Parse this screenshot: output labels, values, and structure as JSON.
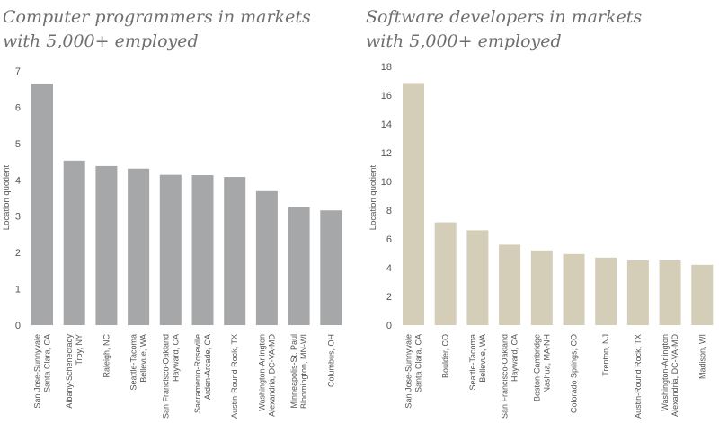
{
  "chart_data": [
    {
      "type": "bar",
      "title_lines": [
        "Computer programmers in markets",
        "with 5,000+ employed"
      ],
      "xlabel": "",
      "ylabel": "Location quotient",
      "ylim": [
        0,
        7
      ],
      "yticks": [
        0,
        1,
        2,
        3,
        4,
        5,
        6,
        7
      ],
      "grid": false,
      "bar_color": "#a5a7a9",
      "categories": [
        [
          "San Jose-Sunnyvale",
          "Santa Clara, CA"
        ],
        [
          "Albany-Schenectady",
          "Troy, NY"
        ],
        [
          "Raleigh, NC"
        ],
        [
          "Seattle-Tacoma",
          "Bellevue, WA"
        ],
        [
          "San Francisco-Oakland",
          "Hayward, CA"
        ],
        [
          "Sacramento-Roseville",
          "Arden-Arcade, CA"
        ],
        [
          "Austin-Round Rock, TX"
        ],
        [
          "Washington-Arlington",
          "Alexandria, DC-VA-MD"
        ],
        [
          "Minneapolis-St. Paul",
          "Bloomington, MN-WI"
        ],
        [
          "Columbus, OH"
        ]
      ],
      "values": [
        6.65,
        4.53,
        4.38,
        4.31,
        4.14,
        4.13,
        4.08,
        3.69,
        3.25,
        3.16
      ]
    },
    {
      "type": "bar",
      "title_lines": [
        "Software developers in markets",
        "with 5,000+ employed"
      ],
      "xlabel": "",
      "ylabel": "Location quotient",
      "ylim": [
        0,
        18
      ],
      "yticks": [
        0,
        2,
        4,
        6,
        8,
        10,
        12,
        14,
        16,
        18
      ],
      "grid": false,
      "bar_color": "#d4cdb8",
      "categories": [
        [
          "San Jose-Sunnyvale",
          "Santa Clara, CA"
        ],
        [
          "Boulder, CO"
        ],
        [
          "Seattle-Tacoma",
          "Bellevue, WA"
        ],
        [
          "San Francisco-Oakland",
          "Hayward, CA"
        ],
        [
          "Boston-Cambridge",
          "Nashua, MA-NH"
        ],
        [
          "Colorado Springs, CO"
        ],
        [
          "Trenton, NJ"
        ],
        [
          "Austin-Round Rock, TX"
        ],
        [
          "Washington-Arlington",
          "Alexandria, DC-VA-MD"
        ],
        [
          "Madison, WI"
        ]
      ],
      "values": [
        16.85,
        7.15,
        6.6,
        5.6,
        5.2,
        4.95,
        4.7,
        4.5,
        4.5,
        4.2
      ]
    }
  ]
}
